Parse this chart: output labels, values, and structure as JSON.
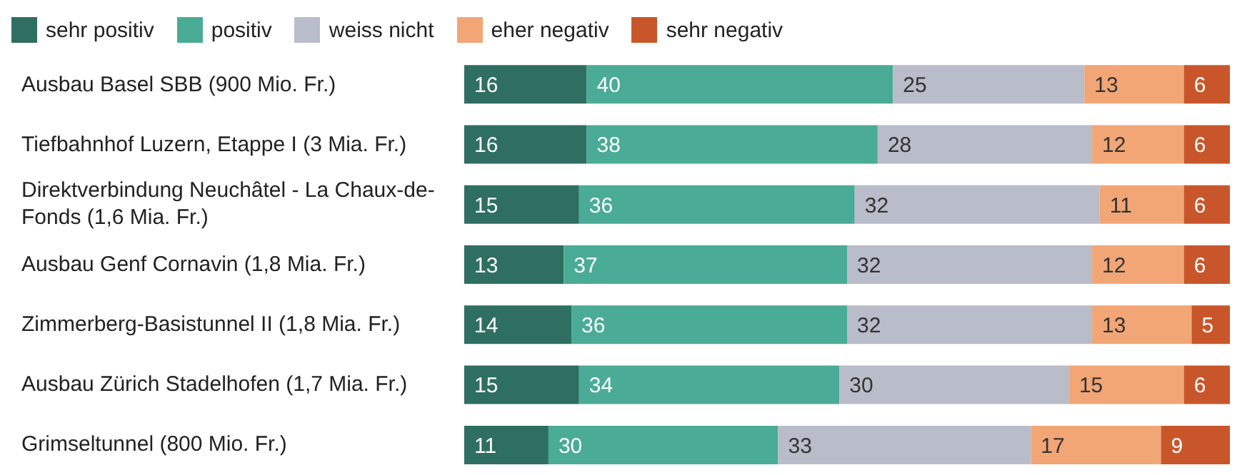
{
  "chart_data": {
    "type": "bar",
    "orientation": "horizontal",
    "stacked": true,
    "data_labels": true,
    "legend": "top left",
    "categories": [
      "Ausbau Basel SBB (900 Mio. Fr.)",
      "Tiefbahnhof Luzern, Etappe I (3 Mia. Fr.)",
      "Direktverbindung Neuchâtel - La Chaux-de-Fonds (1,6 Mia. Fr.)",
      "Ausbau Genf Cornavin (1,8 Mia. Fr.)",
      "Zimmerberg-Basistunnel II (1,8 Mia. Fr.)",
      "Ausbau Zürich Stadelhofen (1,7 Mia. Fr.)",
      "Grimseltunnel (800 Mio. Fr.)"
    ],
    "series": [
      {
        "name": "sehr positiv",
        "color": "#2e6f62",
        "values": [
          16,
          16,
          15,
          13,
          14,
          15,
          11
        ]
      },
      {
        "name": "positiv",
        "color": "#4aab96",
        "values": [
          40,
          38,
          36,
          37,
          36,
          34,
          30
        ]
      },
      {
        "name": "weiss nicht",
        "color": "#b9bcc9",
        "values": [
          25,
          28,
          32,
          32,
          32,
          30,
          33
        ]
      },
      {
        "name": "eher negativ",
        "color": "#f2a676",
        "values": [
          13,
          12,
          11,
          12,
          13,
          15,
          17
        ]
      },
      {
        "name": "sehr negativ",
        "color": "#c9562a",
        "values": [
          6,
          6,
          6,
          6,
          5,
          6,
          9
        ]
      }
    ]
  }
}
